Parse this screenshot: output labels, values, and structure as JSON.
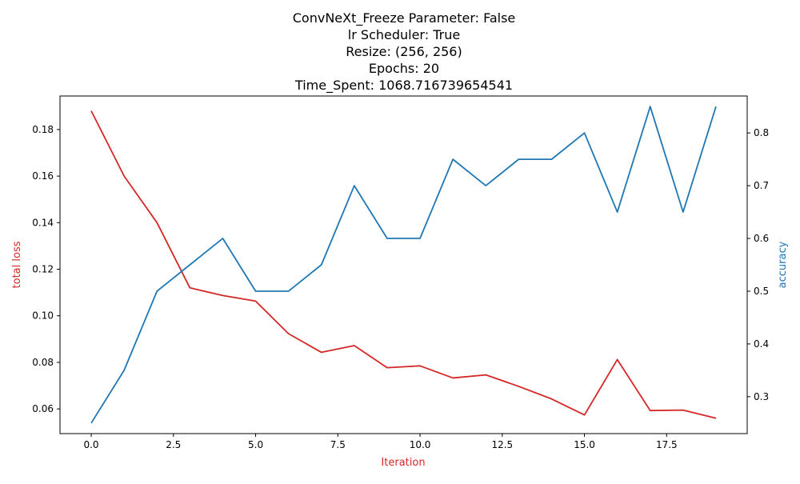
{
  "colors": {
    "loss": "#d62728",
    "accuracy": "#1f77b4",
    "axis": "#000000",
    "background": "#ffffff"
  },
  "chart_data": {
    "type": "line",
    "title_lines": [
      "ConvNeXt_Freeze Parameter: False",
      "lr Scheduler: True",
      "Resize: (256, 256)",
      "Epochs: 20",
      "Time_Spent: 1068.716739654541"
    ],
    "xlabel": "Iteration",
    "y_left_label": "total loss",
    "y_right_label": "accuracy",
    "x": [
      0,
      1,
      2,
      3,
      4,
      5,
      6,
      7,
      8,
      9,
      10,
      11,
      12,
      13,
      14,
      15,
      16,
      17,
      18,
      19
    ],
    "xlim": [
      -0.95,
      19.95
    ],
    "ylim_left": [
      0.0494,
      0.1944
    ],
    "ylim_right": [
      0.23,
      0.87
    ],
    "x_ticks": [
      "0.0",
      "2.5",
      "5.0",
      "7.5",
      "10.0",
      "12.5",
      "15.0",
      "17.5"
    ],
    "y_left_ticks": [
      "0.06",
      "0.08",
      "0.10",
      "0.12",
      "0.14",
      "0.16",
      "0.18"
    ],
    "y_right_ticks": [
      "0.3",
      "0.4",
      "0.5",
      "0.6",
      "0.7",
      "0.8"
    ],
    "grid": false,
    "series": [
      {
        "name": "total loss",
        "axis": "left",
        "values": [
          0.188,
          0.16,
          0.14,
          0.112,
          0.1087,
          0.1063,
          0.0923,
          0.0843,
          0.0872,
          0.0777,
          0.0785,
          0.0733,
          0.0746,
          0.0697,
          0.0643,
          0.0574,
          0.0812,
          0.0593,
          0.0595,
          0.056
        ]
      },
      {
        "name": "accuracy",
        "axis": "right",
        "values": [
          0.25,
          0.35,
          0.5,
          0.55,
          0.6,
          0.5,
          0.5,
          0.55,
          0.7,
          0.6,
          0.6,
          0.75,
          0.7,
          0.75,
          0.75,
          0.8,
          0.65,
          0.85,
          0.65,
          0.85
        ]
      }
    ]
  }
}
